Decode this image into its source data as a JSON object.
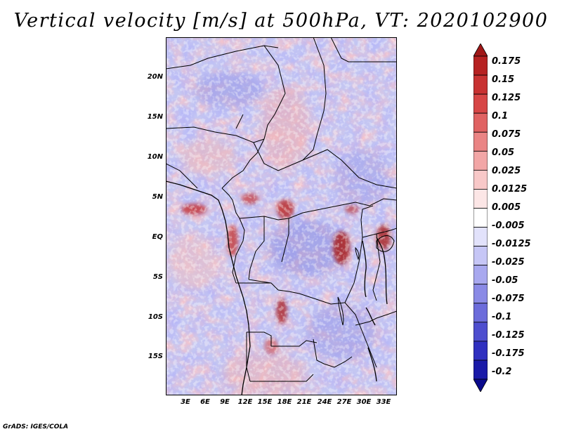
{
  "title": "Vertical velocity [m/s] at 500hPa, VT: 2020102900",
  "credit": "GrADS: IGES/COLA",
  "map": {
    "region": "Central Africa",
    "y_axis_labels": [
      "20N",
      "15N",
      "10N",
      "5N",
      "EQ",
      "5S",
      "10S",
      "15S"
    ],
    "y_axis_lats": [
      20,
      15,
      10,
      5,
      0,
      -5,
      -10,
      -15
    ],
    "x_axis_labels": [
      "3E",
      "6E",
      "9E",
      "12E",
      "15E",
      "18E",
      "21E",
      "24E",
      "27E",
      "30E",
      "33E"
    ],
    "x_axis_lons": [
      3,
      6,
      9,
      12,
      15,
      18,
      21,
      24,
      27,
      30,
      33
    ],
    "lon_range": [
      0.5,
      34.5
    ],
    "lat_range": [
      -19.5,
      25.0
    ]
  },
  "colorbar": {
    "labels": [
      "0.175",
      "0.15",
      "0.125",
      "0.1",
      "0.075",
      "0.05",
      "0.025",
      "0.0125",
      "0.005",
      "-0.005",
      "-0.0125",
      "-0.025",
      "-0.05",
      "-0.075",
      "-0.1",
      "-0.125",
      "-0.175",
      "-0.2"
    ],
    "colors": [
      "#a01818",
      "#b62222",
      "#c83232",
      "#d74646",
      "#e06262",
      "#ea8484",
      "#f2a6a6",
      "#f8c8c8",
      "#fce6e6",
      "#ffffff",
      "#e2e2fb",
      "#c6c6f6",
      "#a8a8ef",
      "#8a8ae6",
      "#6c6cdb",
      "#4e4ecf",
      "#3030c0",
      "#1a1aa8",
      "#0a0a8c"
    ]
  }
}
